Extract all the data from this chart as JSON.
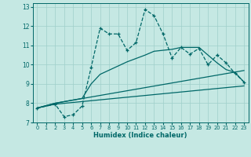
{
  "xlabel": "Humidex (Indice chaleur)",
  "background_color": "#c5e8e3",
  "grid_color": "#9fcfca",
  "line_color": "#006868",
  "xlim": [
    -0.5,
    23.5
  ],
  "ylim": [
    7,
    13.2
  ],
  "xticks": [
    0,
    1,
    2,
    3,
    4,
    5,
    6,
    7,
    8,
    9,
    10,
    11,
    12,
    13,
    14,
    15,
    16,
    17,
    18,
    19,
    20,
    21,
    22,
    23
  ],
  "yticks": [
    7,
    8,
    9,
    10,
    11,
    12,
    13
  ],
  "lines": [
    {
      "x": [
        0,
        2,
        23
      ],
      "y": [
        7.75,
        7.95,
        8.9
      ],
      "marker": null,
      "linestyle": "-",
      "linewidth": 0.9
    },
    {
      "x": [
        0,
        2,
        23
      ],
      "y": [
        7.75,
        8.0,
        9.7
      ],
      "marker": null,
      "linestyle": "-",
      "linewidth": 0.9
    },
    {
      "x": [
        0,
        2,
        5,
        6,
        7,
        10,
        12,
        13,
        14,
        15,
        16,
        17,
        18,
        19,
        20,
        21,
        22,
        23
      ],
      "y": [
        7.75,
        8.0,
        8.25,
        9.0,
        9.5,
        10.15,
        10.5,
        10.7,
        10.75,
        10.8,
        10.9,
        10.9,
        10.9,
        10.5,
        10.1,
        9.75,
        9.6,
        9.1
      ],
      "marker": null,
      "linestyle": "-",
      "linewidth": 0.9
    },
    {
      "x": [
        0,
        2,
        3,
        4,
        5,
        6,
        7,
        8,
        9,
        10,
        11,
        12,
        13,
        14,
        15,
        16,
        17,
        18,
        19,
        20,
        21,
        22,
        23
      ],
      "y": [
        7.75,
        7.95,
        7.3,
        7.4,
        7.85,
        9.85,
        11.9,
        11.6,
        11.6,
        10.75,
        11.15,
        12.87,
        12.55,
        11.6,
        10.35,
        10.9,
        10.55,
        10.85,
        10.0,
        10.5,
        10.1,
        9.55,
        9.1
      ],
      "marker": "+",
      "linestyle": "--",
      "linewidth": 0.9
    }
  ]
}
